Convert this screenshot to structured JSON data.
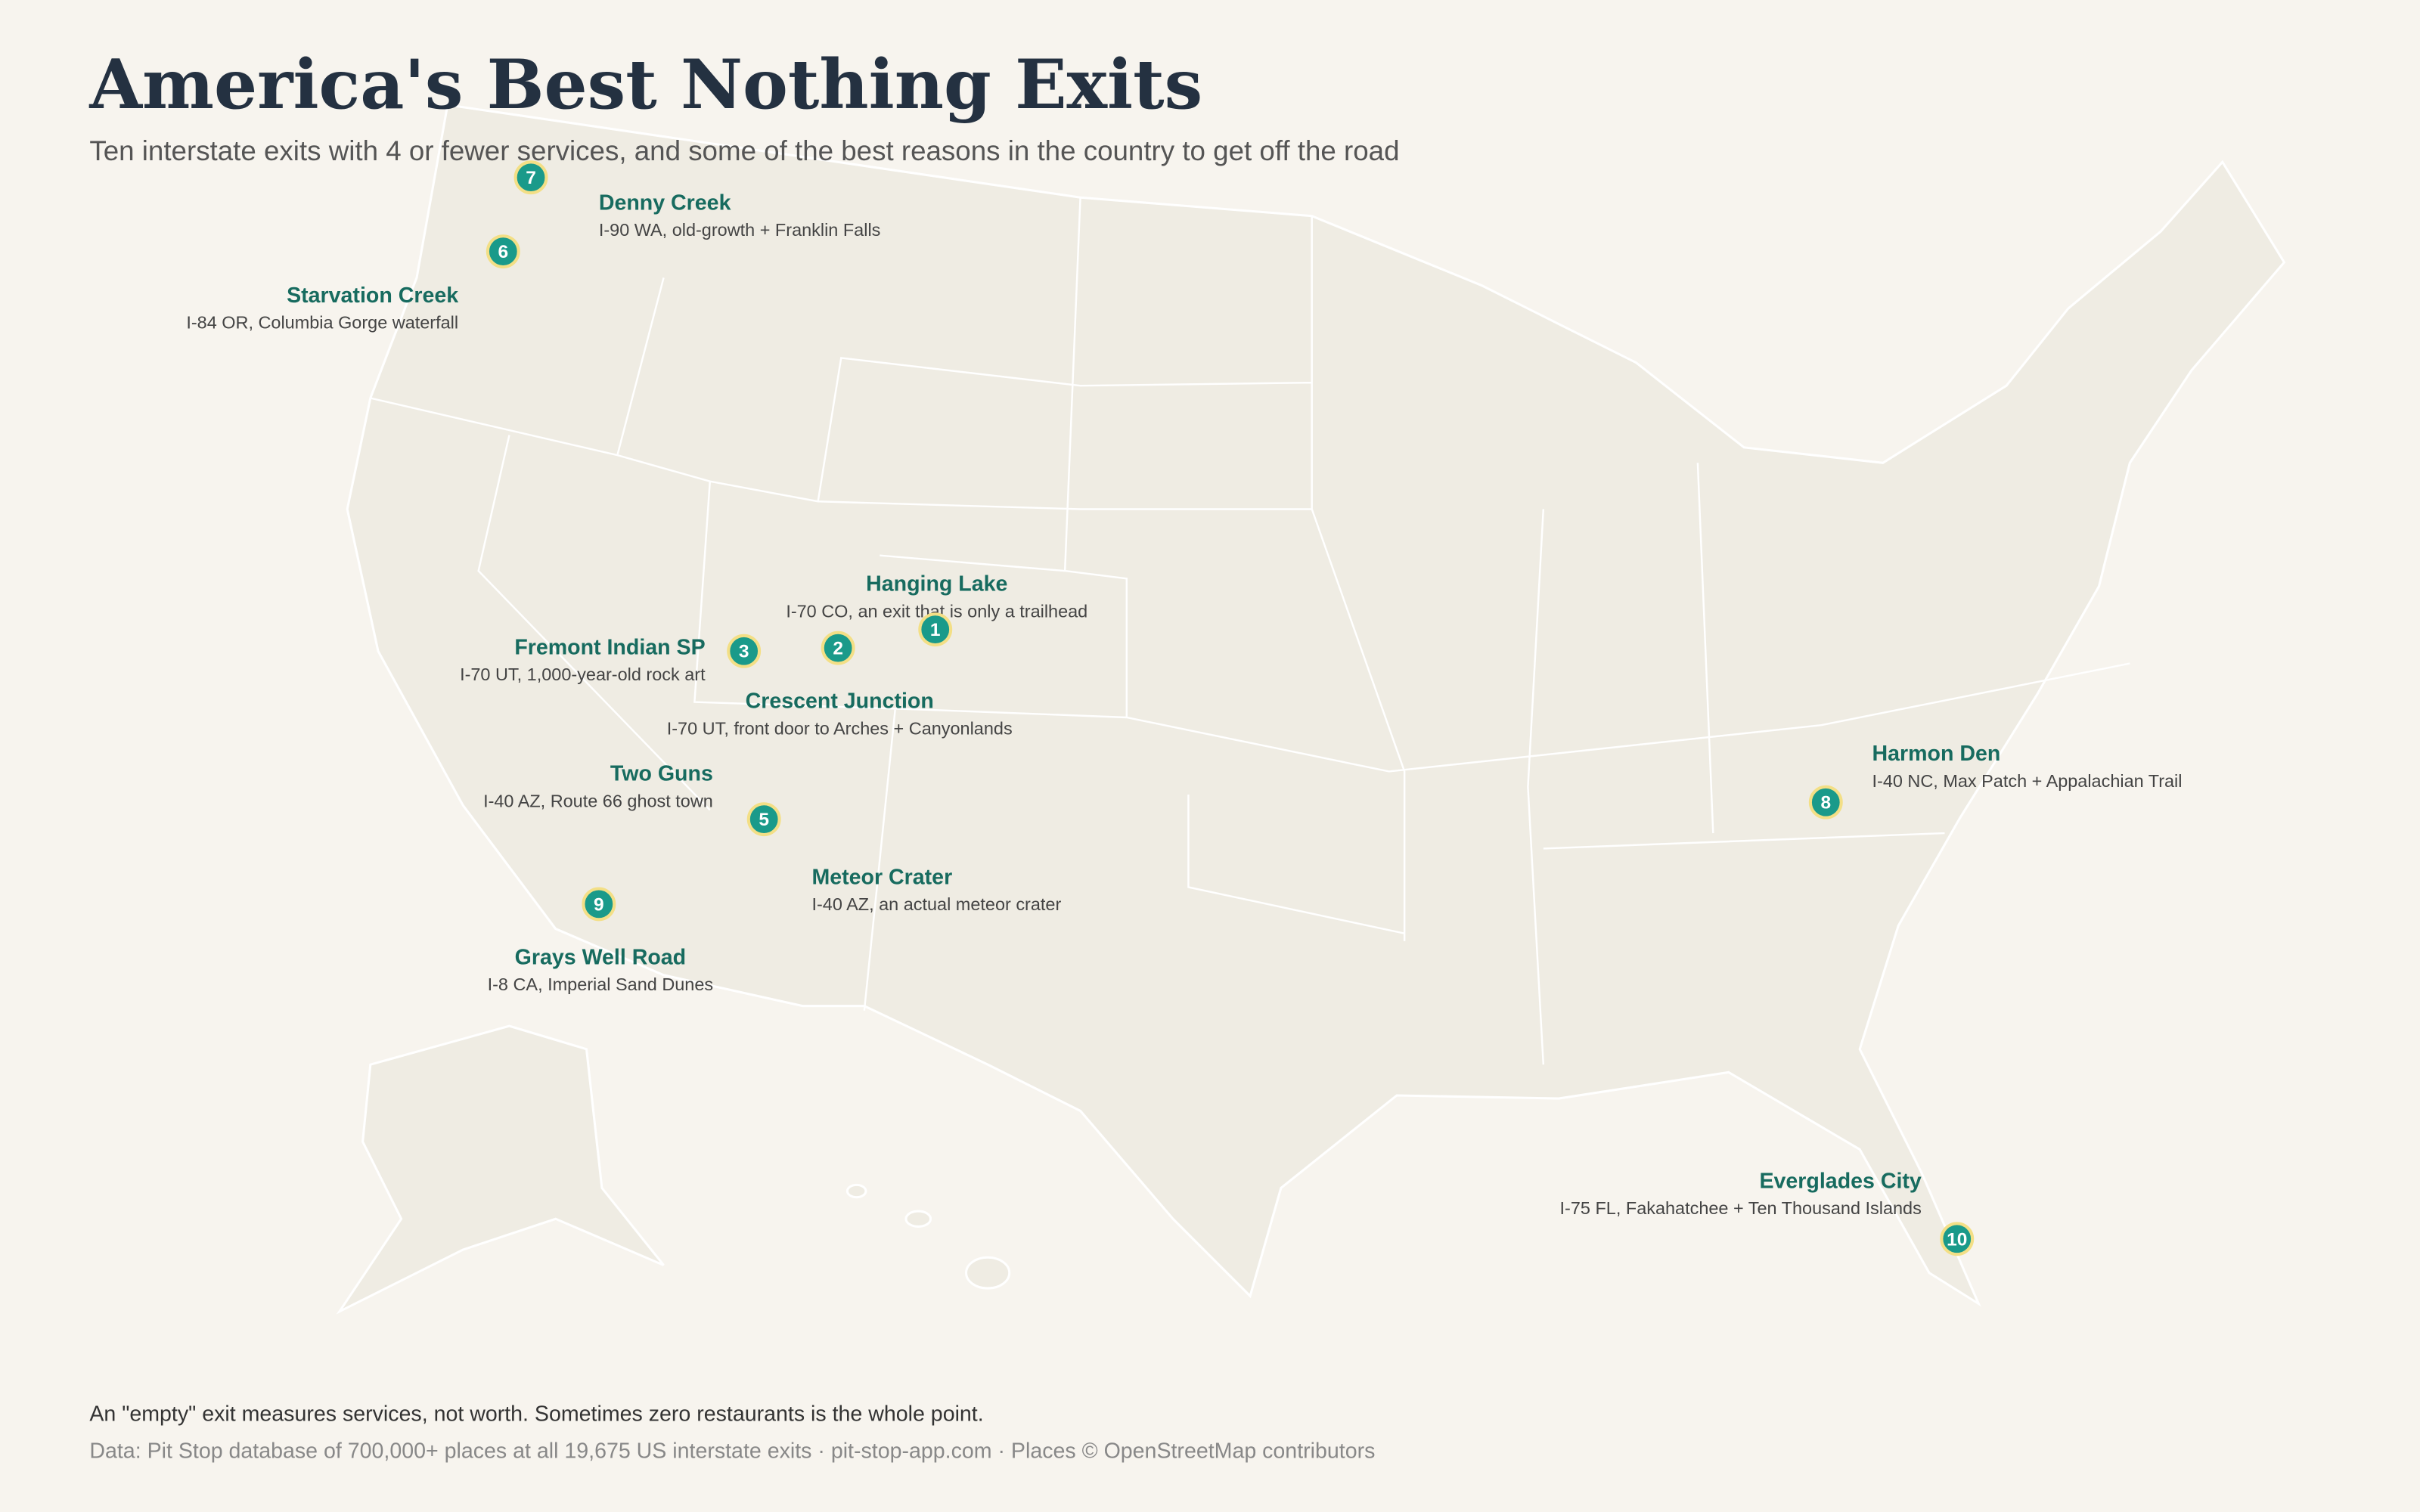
{
  "header": {
    "title": "America's Best Nothing Exits",
    "subtitle": "Ten interstate exits with 4 or fewer services, and some of the best reasons in the country to get off the road"
  },
  "exits": [
    {
      "number": 1,
      "name": "Hanging Lake",
      "detail": "I-70 CO, an exit that is only a trailhead"
    },
    {
      "number": 2,
      "name": "Crescent Junction",
      "detail": "I-70 UT, front door to Arches + Canyonlands"
    },
    {
      "number": 3,
      "name": "Fremont Indian SP",
      "detail": "I-70 UT, 1,000-year-old rock art"
    },
    {
      "name": "Two Guns",
      "detail": "I-40 AZ, Route 66 ghost town"
    },
    {
      "number": 5,
      "name": "Meteor Crater",
      "detail": "I-40 AZ, an actual meteor crater"
    },
    {
      "number": 6,
      "name": "Starvation Creek",
      "detail": "I-84 OR, Columbia Gorge waterfall"
    },
    {
      "number": 7,
      "name": "Denny Creek",
      "detail": "I-90 WA, old-growth + Franklin Falls"
    },
    {
      "number": 8,
      "name": "Harmon Den",
      "detail": "I-40 NC, Max Patch + Appalachian Trail"
    },
    {
      "number": 9,
      "name": "Grays Well Road",
      "detail": "I-8 CA, Imperial Sand Dunes"
    },
    {
      "number": 10,
      "name": "Everglades City",
      "detail": "I-75 FL, Fakahatchee + Ten Thousand Islands"
    }
  ],
  "footer": {
    "note": "An \"empty\" exit measures services, not worth. Sometimes zero restaurants is the whole point.",
    "source": "Data: Pit Stop database of 700,000+ places at all 19,675 US interstate exits · pit-stop-app.com · Places © OpenStreetMap contributors"
  }
}
